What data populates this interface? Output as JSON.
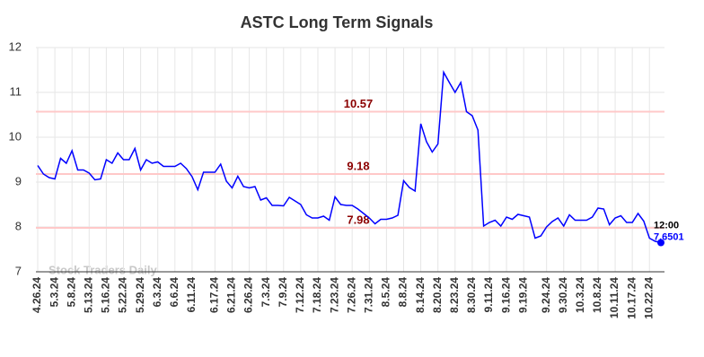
{
  "chart_data": {
    "type": "line",
    "title": "ASTC Long Term Signals",
    "categories": [
      "4.26.24",
      null,
      null,
      "5.3.24",
      null,
      null,
      "5.8.24",
      null,
      null,
      "5.13.24",
      null,
      null,
      "5.16.24",
      null,
      null,
      "5.22.24",
      null,
      null,
      "5.29.24",
      null,
      null,
      "6.3.24",
      null,
      null,
      "6.6.24",
      null,
      null,
      "6.11.24",
      null,
      null,
      null,
      "6.17.24",
      null,
      null,
      "6.21.24",
      null,
      null,
      "6.26.24",
      null,
      null,
      "7.3.24",
      null,
      null,
      "7.9.24",
      null,
      null,
      "7.12.24",
      null,
      null,
      "7.18.24",
      null,
      null,
      "7.23.24",
      null,
      null,
      "7.26.24",
      null,
      null,
      "7.31.24",
      null,
      null,
      "8.5.24",
      null,
      null,
      "8.8.24",
      null,
      null,
      "8.14.24",
      null,
      null,
      "8.20.24",
      null,
      null,
      "8.23.24",
      null,
      null,
      "8.30.24",
      null,
      null,
      "9.11.24",
      null,
      null,
      "9.16.24",
      null,
      null,
      "9.19.24",
      null,
      null,
      null,
      "9.24.24",
      null,
      null,
      "9.30.24",
      null,
      null,
      "10.3.24",
      null,
      null,
      "10.8.24",
      null,
      null,
      "10.11.24",
      null,
      null,
      "10.17.24",
      null,
      null,
      "10.22.24",
      null,
      null
    ],
    "values": [
      9.37,
      9.18,
      9.1,
      9.07,
      9.53,
      9.42,
      9.7,
      9.27,
      9.27,
      9.2,
      9.05,
      9.07,
      9.5,
      9.42,
      9.65,
      9.5,
      9.5,
      9.75,
      9.27,
      9.5,
      9.42,
      9.45,
      9.35,
      9.35,
      9.35,
      9.42,
      9.3,
      9.12,
      8.83,
      9.22,
      9.22,
      9.22,
      9.4,
      9.02,
      8.87,
      9.13,
      8.9,
      8.87,
      8.9,
      8.6,
      8.65,
      8.48,
      8.48,
      8.47,
      8.66,
      8.58,
      8.5,
      8.27,
      8.2,
      8.2,
      8.24,
      8.15,
      8.67,
      8.5,
      8.48,
      8.48,
      8.4,
      8.3,
      8.2,
      8.07,
      8.17,
      8.17,
      8.2,
      8.26,
      9.03,
      8.88,
      8.8,
      10.3,
      9.9,
      9.67,
      9.85,
      11.45,
      11.22,
      11.0,
      11.22,
      10.57,
      10.48,
      10.16,
      8.02,
      8.1,
      8.15,
      8.02,
      8.22,
      8.17,
      8.28,
      8.25,
      8.22,
      7.75,
      7.8,
      8.0,
      8.12,
      8.2,
      8.02,
      8.27,
      8.15,
      8.15,
      8.15,
      8.22,
      8.42,
      8.4,
      8.05,
      8.2,
      8.25,
      8.1,
      8.1,
      8.3,
      8.13,
      7.75,
      7.68,
      7.6501
    ],
    "color": "#0000ff",
    "ylim": [
      7,
      12
    ],
    "yticks": [
      7,
      8,
      9,
      10,
      11,
      12
    ],
    "grid": true,
    "levels": [
      10.57,
      9.18,
      7.98
    ],
    "level_color": "#ffc8c8",
    "level_label_color": "#8b0000",
    "annotation": "12:00",
    "watermark": "Stock Traders Daily"
  }
}
